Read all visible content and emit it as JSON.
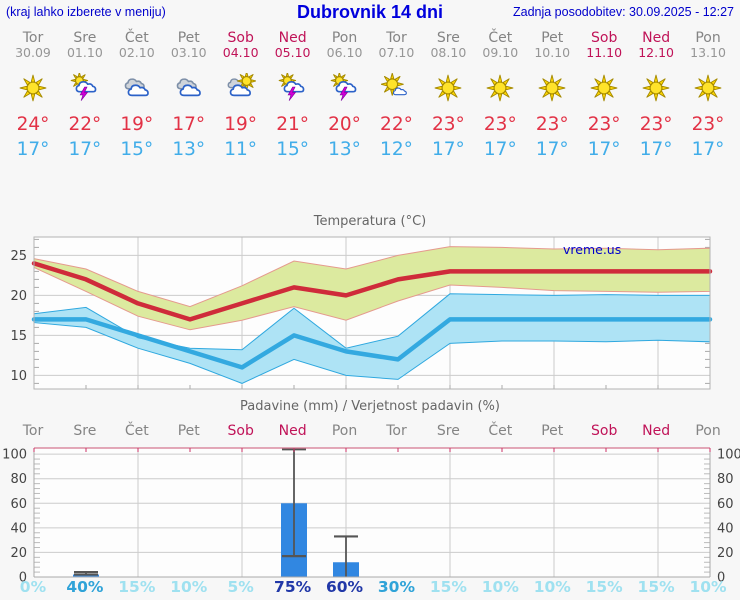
{
  "header": {
    "left_note": "(kraj lahko izberete v meniju)",
    "title": "Dubrovnik 14 dni",
    "updated": "Zadnja posodobitev: 30.09.2025 - 12:27"
  },
  "watermark": "vreme.us",
  "days": [
    {
      "weekday": "Tor",
      "date": "30.09",
      "weekend": false,
      "icon": "sun",
      "tmax_label": "24°",
      "tmin_label": "17°",
      "prob_label": "0%",
      "prob_level": "low"
    },
    {
      "weekday": "Sre",
      "date": "01.10",
      "weekend": false,
      "icon": "sun-storm",
      "tmax_label": "22°",
      "tmin_label": "17°",
      "prob_label": "40%",
      "prob_level": "mid"
    },
    {
      "weekday": "Čet",
      "date": "02.10",
      "weekend": false,
      "icon": "clouds",
      "tmax_label": "19°",
      "tmin_label": "15°",
      "prob_label": "15%",
      "prob_level": "low"
    },
    {
      "weekday": "Pet",
      "date": "03.10",
      "weekend": false,
      "icon": "clouds",
      "tmax_label": "17°",
      "tmin_label": "13°",
      "prob_label": "10%",
      "prob_level": "low"
    },
    {
      "weekday": "Sob",
      "date": "04.10",
      "weekend": true,
      "icon": "cloud-sun",
      "tmax_label": "19°",
      "tmin_label": "11°",
      "prob_label": "5%",
      "prob_level": "low"
    },
    {
      "weekday": "Ned",
      "date": "05.10",
      "weekend": true,
      "icon": "sun-storm",
      "tmax_label": "21°",
      "tmin_label": "15°",
      "prob_label": "75%",
      "prob_level": "high"
    },
    {
      "weekday": "Pon",
      "date": "06.10",
      "weekend": false,
      "icon": "sun-storm",
      "tmax_label": "20°",
      "tmin_label": "13°",
      "prob_label": "60%",
      "prob_level": "high"
    },
    {
      "weekday": "Tor",
      "date": "07.10",
      "weekend": false,
      "icon": "sun-cloud",
      "tmax_label": "22°",
      "tmin_label": "12°",
      "prob_label": "30%",
      "prob_level": "mid"
    },
    {
      "weekday": "Sre",
      "date": "08.10",
      "weekend": false,
      "icon": "sun",
      "tmax_label": "23°",
      "tmin_label": "17°",
      "prob_label": "15%",
      "prob_level": "low"
    },
    {
      "weekday": "Čet",
      "date": "09.10",
      "weekend": false,
      "icon": "sun",
      "tmax_label": "23°",
      "tmin_label": "17°",
      "prob_label": "10%",
      "prob_level": "low"
    },
    {
      "weekday": "Pet",
      "date": "10.10",
      "weekend": false,
      "icon": "sun",
      "tmax_label": "23°",
      "tmin_label": "17°",
      "prob_label": "10%",
      "prob_level": "low"
    },
    {
      "weekday": "Sob",
      "date": "11.10",
      "weekend": true,
      "icon": "sun",
      "tmax_label": "23°",
      "tmin_label": "17°",
      "prob_label": "15%",
      "prob_level": "low"
    },
    {
      "weekday": "Ned",
      "date": "12.10",
      "weekend": true,
      "icon": "sun",
      "tmax_label": "23°",
      "tmin_label": "17°",
      "prob_label": "15%",
      "prob_level": "low"
    },
    {
      "weekday": "Pon",
      "date": "13.10",
      "weekend": false,
      "icon": "sun",
      "tmax_label": "23°",
      "tmin_label": "17°",
      "prob_label": "10%",
      "prob_level": "low"
    }
  ],
  "chart_data": [
    {
      "type": "line",
      "title": "Temperatura (°C)",
      "x_labels": [
        "Tor",
        "Sre",
        "Čet",
        "Pet",
        "Sob",
        "Ned",
        "Pon",
        "Tor",
        "Sre",
        "Čet",
        "Pet",
        "Sob",
        "Ned",
        "Pon"
      ],
      "ylim": [
        8.3,
        27.3
      ],
      "yticks": [
        10,
        15,
        20,
        25
      ],
      "grid": true,
      "gridline_days": [
        2,
        4,
        6,
        8,
        10,
        12
      ],
      "legend_position": "none",
      "watermark": "vreme.us",
      "series": [
        {
          "name": "max_temp",
          "values": [
            24,
            22,
            19,
            17,
            19,
            21,
            20,
            22,
            23,
            23,
            23,
            23,
            23,
            23
          ]
        },
        {
          "name": "max_band_upper",
          "values": [
            24.6,
            23.3,
            20.5,
            18.6,
            21.2,
            24.3,
            23.3,
            25.0,
            26.1,
            26.0,
            25.8,
            25.9,
            25.7,
            25.9
          ]
        },
        {
          "name": "max_band_lower",
          "values": [
            23.5,
            20.5,
            17.4,
            15.7,
            16.9,
            18.6,
            16.9,
            19.3,
            21.3,
            21.0,
            20.6,
            20.5,
            20.4,
            20.5
          ]
        },
        {
          "name": "min_temp",
          "values": [
            17,
            17,
            15,
            13,
            11,
            15,
            13,
            12,
            17,
            17,
            17,
            17,
            17,
            17
          ]
        },
        {
          "name": "min_band_upper",
          "values": [
            17.7,
            18.5,
            14.7,
            13.4,
            13.2,
            18.4,
            13.4,
            14.9,
            20.2,
            20.1,
            20.0,
            20.1,
            20.0,
            20.0
          ]
        },
        {
          "name": "min_band_lower",
          "values": [
            16.6,
            16.0,
            13.4,
            11.5,
            9.0,
            12.0,
            10.0,
            9.5,
            14.0,
            14.3,
            14.3,
            14.2,
            14.4,
            14.2
          ]
        }
      ]
    },
    {
      "type": "bar",
      "title": "Padavine (mm) / Verjetnost padavin (%)",
      "categories": [
        "Tor",
        "Sre",
        "Čet",
        "Pet",
        "Sob",
        "Ned",
        "Pon",
        "Tor",
        "Sre",
        "Čet",
        "Pet",
        "Sob",
        "Ned",
        "Pon"
      ],
      "values": [
        0,
        2,
        0,
        0,
        0,
        60,
        12,
        0,
        0,
        0,
        0,
        0,
        0,
        0
      ],
      "whisker_low": [
        null,
        2,
        null,
        null,
        null,
        17,
        0,
        null,
        null,
        null,
        null,
        null,
        null,
        null
      ],
      "whisker_high": [
        null,
        4,
        null,
        null,
        null,
        104,
        33,
        null,
        null,
        null,
        null,
        null,
        null,
        null
      ],
      "probabilities_pct": [
        0,
        40,
        15,
        10,
        5,
        75,
        60,
        30,
        15,
        10,
        10,
        15,
        15,
        10
      ],
      "ylim": [
        0,
        105
      ],
      "yticks": [
        0,
        20,
        40,
        60,
        80,
        100
      ],
      "grid": true,
      "gridline_days": [
        2,
        4,
        6,
        8,
        10,
        12
      ]
    }
  ],
  "colors": {
    "header_blue": "#0000cc",
    "weekend": "#c01358",
    "weekday_gray": "#848484",
    "tmax_red": "#e23246",
    "tmin_blue": "#41ade9",
    "line_max": "#cf2b3a",
    "line_min": "#33a9e0",
    "band_max_fill": "#dcea9f",
    "band_max_edge": "#e59a8e",
    "band_min_fill": "#aee3f5",
    "band_min_edge": "#2fa8df",
    "bar_blue": "#3187e1",
    "whisker": "#555555",
    "grid": "#cccccc",
    "axis": "#aaaaaa",
    "tick_label": "#444444",
    "precip_top_border": "#d4768e",
    "precip_day_tick": "#cc3366",
    "prob_low": "#9fe1f0",
    "prob_mid": "#2fa3d8",
    "prob_high": "#2138a8",
    "plot_bg": "#fdfdfd"
  }
}
